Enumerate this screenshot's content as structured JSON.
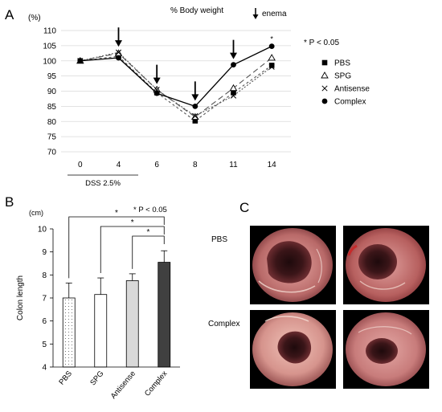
{
  "panels": {
    "a": {
      "letter": "A"
    },
    "b": {
      "letter": "B"
    },
    "c": {
      "letter": "C"
    }
  },
  "chart_data": [
    {
      "type": "line",
      "title": "% Body weight",
      "ylabel": "(%)",
      "xlabel": "",
      "categories": [
        "0",
        "4",
        "6",
        "8",
        "11",
        "14"
      ],
      "ylim": [
        70,
        110
      ],
      "yticks": [
        70,
        75,
        80,
        85,
        90,
        95,
        100,
        105,
        110
      ],
      "grid": true,
      "legend_position": "right",
      "significance_note": "* P < 0.05",
      "treatment_label": "DSS 2.5%",
      "enema_legend": "enema",
      "enema_days": [
        "4",
        "6",
        "8",
        "11"
      ],
      "significance_marks": [
        {
          "category": "11",
          "series": "Complex",
          "text": "*"
        },
        {
          "category": "14",
          "series": "Complex",
          "text": "*"
        }
      ],
      "series": [
        {
          "name": "PBS",
          "marker": "square",
          "dash": "3,3",
          "color": "#555555",
          "values": [
            100,
            101.5,
            89.5,
            80.2,
            89.5,
            98.5
          ]
        },
        {
          "name": "SPG",
          "marker": "triangle",
          "dash": "7,4",
          "color": "#555555",
          "values": [
            100,
            102.5,
            90.5,
            81.5,
            91,
            101
          ]
        },
        {
          "name": "Antisense",
          "marker": "cross",
          "dash": "2,2",
          "color": "#555555",
          "values": [
            100,
            102.8,
            90.5,
            81.8,
            88.5,
            98
          ]
        },
        {
          "name": "Complex",
          "marker": "circle",
          "dash": "",
          "color": "#000000",
          "values": [
            100,
            101,
            89.3,
            85,
            98.7,
            104.8
          ]
        }
      ]
    },
    {
      "type": "bar",
      "title": "",
      "ylabel": "Colon length",
      "unit": "(cm)",
      "xlabel": "",
      "categories": [
        "PBS",
        "SPG",
        "Antisense",
        "Complex"
      ],
      "values": [
        7.0,
        7.15,
        7.75,
        8.55
      ],
      "errors": [
        0.65,
        0.72,
        0.3,
        0.5
      ],
      "bar_fills": [
        "dotted",
        "#ffffff",
        "#d9d9d9",
        "#404040"
      ],
      "ylim": [
        4,
        10
      ],
      "yticks": [
        4,
        5,
        6,
        7,
        8,
        9,
        10
      ],
      "significance_note": "* P < 0.05",
      "comparisons": [
        {
          "from": "PBS",
          "to": "Complex",
          "text": "*"
        },
        {
          "from": "SPG",
          "to": "Complex",
          "text": "*"
        },
        {
          "from": "Antisense",
          "to": "Complex",
          "text": "*"
        }
      ]
    }
  ],
  "endoscopy": {
    "rows": [
      {
        "label": "PBS",
        "images": [
          "endoscopy-pbs-1",
          "endoscopy-pbs-2"
        ]
      },
      {
        "label": "Complex",
        "images": [
          "endoscopy-complex-1",
          "endoscopy-complex-2"
        ]
      }
    ],
    "colors": {
      "background": "#000000",
      "mucosa": "#c97a78",
      "lumen": "#3a1518"
    }
  }
}
